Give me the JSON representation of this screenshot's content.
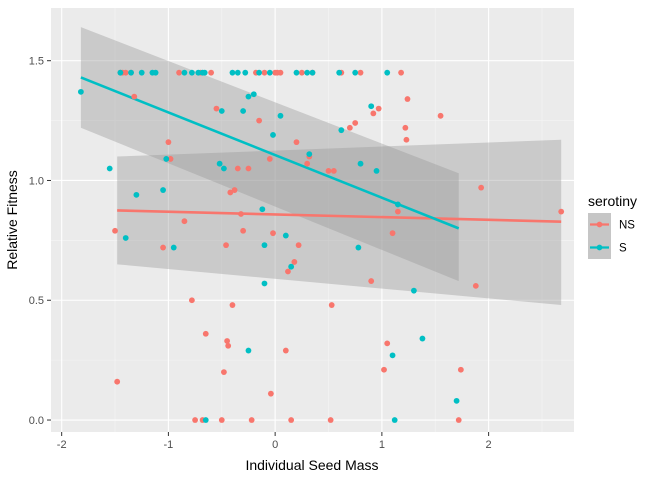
{
  "chart_data": {
    "type": "scatter",
    "xlabel": "Individual Seed Mass",
    "ylabel": "Relative Fitness",
    "xlim": [
      -2.1,
      2.8
    ],
    "ylim": [
      -0.05,
      1.72
    ],
    "x_ticks": [
      -2,
      -1,
      0,
      1,
      2
    ],
    "x_tick_labels": [
      "-2",
      "-1",
      "0",
      "1",
      "2"
    ],
    "y_ticks": [
      0.0,
      0.5,
      1.0,
      1.5
    ],
    "y_tick_labels": [
      "0.0",
      "0.5",
      "1.0",
      "1.5"
    ],
    "grid": true,
    "legend": {
      "title": "serotiny",
      "placement": "right"
    },
    "series": [
      {
        "name": "NS",
        "color": "#F8766D",
        "points": [
          [
            -1.5,
            0.79
          ],
          [
            -1.48,
            0.16
          ],
          [
            -1.45,
            1.45
          ],
          [
            -1.43,
            1.45
          ],
          [
            -1.4,
            1.45
          ],
          [
            -1.35,
            1.45
          ],
          [
            -1.32,
            1.35
          ],
          [
            -1.05,
            0.72
          ],
          [
            -1.0,
            1.16
          ],
          [
            -0.98,
            1.09
          ],
          [
            -0.9,
            1.45
          ],
          [
            -0.85,
            0.83
          ],
          [
            -0.78,
            0.5
          ],
          [
            -0.75,
            0.0
          ],
          [
            -0.7,
            1.45
          ],
          [
            -0.68,
            0.0
          ],
          [
            -0.65,
            0.36
          ],
          [
            -0.6,
            1.45
          ],
          [
            -0.55,
            1.3
          ],
          [
            -0.5,
            0.0
          ],
          [
            -0.48,
            0.2
          ],
          [
            -0.46,
            0.73
          ],
          [
            -0.45,
            0.33
          ],
          [
            -0.44,
            0.31
          ],
          [
            -0.42,
            0.95
          ],
          [
            -0.4,
            0.48
          ],
          [
            -0.38,
            0.96
          ],
          [
            -0.35,
            1.05
          ],
          [
            -0.32,
            0.86
          ],
          [
            -0.3,
            0.79
          ],
          [
            -0.25,
            1.05
          ],
          [
            -0.22,
            0.0
          ],
          [
            -0.18,
            1.45
          ],
          [
            -0.15,
            1.25
          ],
          [
            -0.1,
            1.45
          ],
          [
            -0.05,
            1.09
          ],
          [
            -0.04,
            0.11
          ],
          [
            -0.02,
            0.78
          ],
          [
            0.0,
            1.45
          ],
          [
            0.02,
            1.45
          ],
          [
            0.05,
            1.45
          ],
          [
            0.1,
            0.29
          ],
          [
            0.12,
            0.62
          ],
          [
            0.15,
            0.0
          ],
          [
            0.18,
            0.66
          ],
          [
            0.2,
            1.16
          ],
          [
            0.22,
            0.73
          ],
          [
            0.25,
            1.45
          ],
          [
            0.3,
            1.07
          ],
          [
            0.32,
            1.1
          ],
          [
            0.35,
            1.45
          ],
          [
            0.5,
            1.04
          ],
          [
            0.52,
            0.0
          ],
          [
            0.53,
            0.48
          ],
          [
            0.55,
            1.04
          ],
          [
            0.62,
            1.45
          ],
          [
            0.7,
            1.22
          ],
          [
            0.75,
            1.24
          ],
          [
            0.8,
            1.45
          ],
          [
            0.9,
            0.58
          ],
          [
            0.92,
            1.28
          ],
          [
            0.97,
            1.3
          ],
          [
            1.02,
            0.21
          ],
          [
            1.05,
            0.32
          ],
          [
            1.1,
            0.78
          ],
          [
            1.15,
            0.87
          ],
          [
            1.18,
            1.45
          ],
          [
            1.22,
            1.22
          ],
          [
            1.24,
            1.34
          ],
          [
            1.23,
            1.17
          ],
          [
            1.55,
            1.27
          ],
          [
            1.72,
            0.0
          ],
          [
            1.74,
            0.21
          ],
          [
            1.88,
            0.56
          ],
          [
            1.93,
            0.97
          ],
          [
            2.68,
            0.87
          ]
        ],
        "fit": {
          "x": [
            -1.48,
            2.68
          ],
          "y": [
            0.875,
            0.828
          ]
        },
        "ci": {
          "x": [
            -1.48,
            2.68
          ],
          "upper": [
            1.1,
            1.17
          ],
          "lower": [
            0.65,
            0.48
          ]
        }
      },
      {
        "name": "S",
        "color": "#00BFC4",
        "points": [
          [
            -1.82,
            1.37
          ],
          [
            -1.55,
            1.05
          ],
          [
            -1.45,
            1.45
          ],
          [
            -1.4,
            0.76
          ],
          [
            -1.35,
            1.45
          ],
          [
            -1.3,
            0.94
          ],
          [
            -1.25,
            1.45
          ],
          [
            -1.15,
            1.45
          ],
          [
            -1.12,
            1.45
          ],
          [
            -1.05,
            0.96
          ],
          [
            -1.02,
            1.09
          ],
          [
            -0.95,
            0.72
          ],
          [
            -0.85,
            1.45
          ],
          [
            -0.78,
            1.45
          ],
          [
            -0.72,
            1.45
          ],
          [
            -0.68,
            1.45
          ],
          [
            -0.66,
            1.45
          ],
          [
            -0.65,
            0.0
          ],
          [
            -0.52,
            1.07
          ],
          [
            -0.5,
            1.29
          ],
          [
            -0.48,
            1.05
          ],
          [
            -0.4,
            1.45
          ],
          [
            -0.35,
            1.45
          ],
          [
            -0.3,
            1.29
          ],
          [
            -0.28,
            1.45
          ],
          [
            -0.25,
            0.29
          ],
          [
            -0.25,
            1.35
          ],
          [
            -0.2,
            1.36
          ],
          [
            -0.15,
            1.45
          ],
          [
            -0.12,
            0.88
          ],
          [
            -0.1,
            0.57
          ],
          [
            -0.1,
            0.73
          ],
          [
            -0.05,
            1.45
          ],
          [
            -0.02,
            1.19
          ],
          [
            0.05,
            1.27
          ],
          [
            0.1,
            0.77
          ],
          [
            0.15,
            0.64
          ],
          [
            0.2,
            1.45
          ],
          [
            0.3,
            1.45
          ],
          [
            0.32,
            1.11
          ],
          [
            0.35,
            1.45
          ],
          [
            0.6,
            1.45
          ],
          [
            0.62,
            1.21
          ],
          [
            0.75,
            1.45
          ],
          [
            0.78,
            0.72
          ],
          [
            0.8,
            1.07
          ],
          [
            0.9,
            1.31
          ],
          [
            0.95,
            1.04
          ],
          [
            1.05,
            1.45
          ],
          [
            1.1,
            0.27
          ],
          [
            1.12,
            0.0
          ],
          [
            1.15,
            0.9
          ],
          [
            1.3,
            0.54
          ],
          [
            1.38,
            0.34
          ],
          [
            1.7,
            0.08
          ]
        ],
        "fit": {
          "x": [
            -1.82,
            1.72
          ],
          "y": [
            1.43,
            0.8
          ]
        },
        "ci": {
          "x": [
            -1.82,
            1.72
          ],
          "upper": [
            1.64,
            1.03
          ],
          "lower": [
            1.22,
            0.58
          ]
        }
      }
    ]
  }
}
